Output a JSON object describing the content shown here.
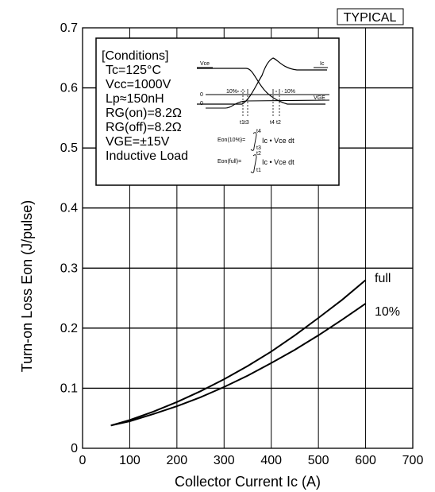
{
  "chart_data": {
    "type": "line",
    "badge": "TYPICAL",
    "xlabel": "Collector Current Ic (A)",
    "ylabel": "Turn-on Loss Eon (J/pulse)",
    "xlim": [
      0,
      700
    ],
    "ylim": [
      0,
      0.7
    ],
    "xticks": [
      "0",
      "100",
      "200",
      "300",
      "400",
      "500",
      "600",
      "700"
    ],
    "yticks": [
      "0",
      "0.1",
      "0.2",
      "0.3",
      "0.4",
      "0.5",
      "0.6",
      "0.7"
    ],
    "grid": true,
    "series": [
      {
        "name": "full",
        "x": [
          60,
          100,
          150,
          200,
          250,
          300,
          350,
          400,
          450,
          500,
          550,
          600
        ],
        "values": [
          0.038,
          0.047,
          0.061,
          0.077,
          0.095,
          0.115,
          0.137,
          0.161,
          0.188,
          0.217,
          0.247,
          0.28
        ]
      },
      {
        "name": "10%",
        "x": [
          60,
          100,
          150,
          200,
          250,
          300,
          350,
          400,
          450,
          500,
          550,
          600
        ],
        "values": [
          0.038,
          0.045,
          0.057,
          0.07,
          0.085,
          0.102,
          0.121,
          0.142,
          0.164,
          0.188,
          0.214,
          0.241
        ]
      }
    ],
    "conditions": {
      "title": "[Conditions]",
      "lines": [
        "Tc=125°C",
        "Vcc=1000V",
        "Lp≈150nH",
        "RG(on)=8.2Ω",
        "RG(off)=8.2Ω",
        "VGE=±15V",
        "Inductive Load"
      ]
    },
    "inset": {
      "vce": "Vce",
      "ic": "Ic",
      "vge": "VGE",
      "zero1": "0",
      "zero2": "0",
      "pct_left": "10%",
      "pct_right": "10%",
      "t1t3": "t1t3",
      "t4": "t4",
      "t2": "t2",
      "eon10_lhs": "Eon(10%)=",
      "eon10_up": "t4",
      "eon10_low": "t3",
      "eonfull_lhs": "Eon(full)=",
      "eonfull_up": "t2",
      "eonfull_low": "t1",
      "integrand": "Ic • Vce dt"
    }
  }
}
